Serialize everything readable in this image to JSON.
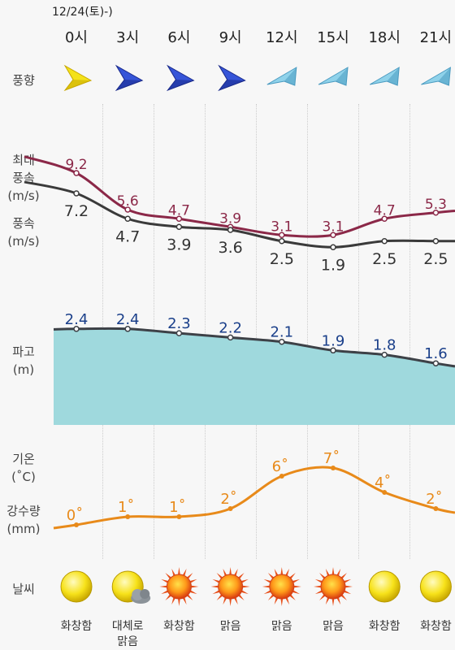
{
  "header": {
    "date_label": "12/24(토)-)"
  },
  "hours": [
    "0시",
    "3시",
    "6시",
    "9시",
    "12시",
    "15시",
    "18시",
    "21시"
  ],
  "labels": {
    "wind_dir": "풍향",
    "max_wind": "최대\n풍속\n(m/s)",
    "wind": "풍속\n(m/s)",
    "wave": "파고\n(m)",
    "temp": "기온\n(˚C)",
    "rain": "강수량\n(mm)",
    "weather": "날씨"
  },
  "wind_direction_icons": [
    "arrow-yellow-icon",
    "arrow-blue-icon",
    "arrow-blue-icon",
    "arrow-blue-icon",
    "arrow-lightblue-icon",
    "arrow-lightblue-icon",
    "arrow-lightblue-icon",
    "arrow-lightblue-icon"
  ],
  "chart_data": [
    {
      "type": "line",
      "x": [
        "0시",
        "3시",
        "6시",
        "9시",
        "12시",
        "15시",
        "18시",
        "21시"
      ],
      "series": [
        {
          "values": [
            9.2,
            5.6,
            4.7,
            3.9,
            3.1,
            3.1,
            4.7,
            5.3
          ],
          "color": "#8b2848"
        },
        {
          "values": [
            7.2,
            4.7,
            3.9,
            3.6,
            2.5,
            1.9,
            2.5,
            2.5
          ],
          "color": "#3a3a3a"
        }
      ],
      "data_labels": {
        "max_wind": [
          "9.2",
          "5.6",
          "4.7",
          "3.9",
          "3.1",
          "3.1",
          "4.7",
          "5.3"
        ],
        "wind": [
          "7.2",
          "4.7",
          "3.9",
          "3.6",
          "2.5",
          "1.9",
          "2.5",
          "2.5"
        ]
      }
    },
    {
      "type": "area",
      "x": [
        "0시",
        "3시",
        "6시",
        "9시",
        "12시",
        "15시",
        "18시",
        "21시"
      ],
      "series": [
        {
          "values": [
            2.4,
            2.4,
            2.3,
            2.2,
            2.1,
            1.9,
            1.8,
            1.6
          ],
          "color": "#9fd9dd"
        }
      ],
      "data_labels": [
        "2.4",
        "2.4",
        "2.3",
        "2.2",
        "2.1",
        "1.9",
        "1.8",
        "1.6"
      ]
    },
    {
      "type": "line",
      "x": [
        "0시",
        "3시",
        "6시",
        "9시",
        "12시",
        "15시",
        "18시",
        "21시"
      ],
      "series": [
        {
          "values": [
            0,
            1,
            1,
            2,
            6,
            7,
            4,
            2
          ],
          "color": "#e88a1a"
        }
      ],
      "data_labels": [
        "0˚",
        "1˚",
        "1˚",
        "2˚",
        "6˚",
        "7˚",
        "4˚",
        "2˚"
      ]
    }
  ],
  "weather": {
    "icons": [
      "sun-pale-icon",
      "sun-cloud-icon",
      "sun-bright-icon",
      "sun-bright-icon",
      "sun-bright-icon",
      "sun-bright-icon",
      "sun-pale-icon",
      "sun-pale-icon"
    ],
    "descriptions": [
      "화창함",
      "대체로\n맑음",
      "화창함",
      "맑음",
      "맑음",
      "맑음",
      "화창함",
      "화창함"
    ]
  }
}
